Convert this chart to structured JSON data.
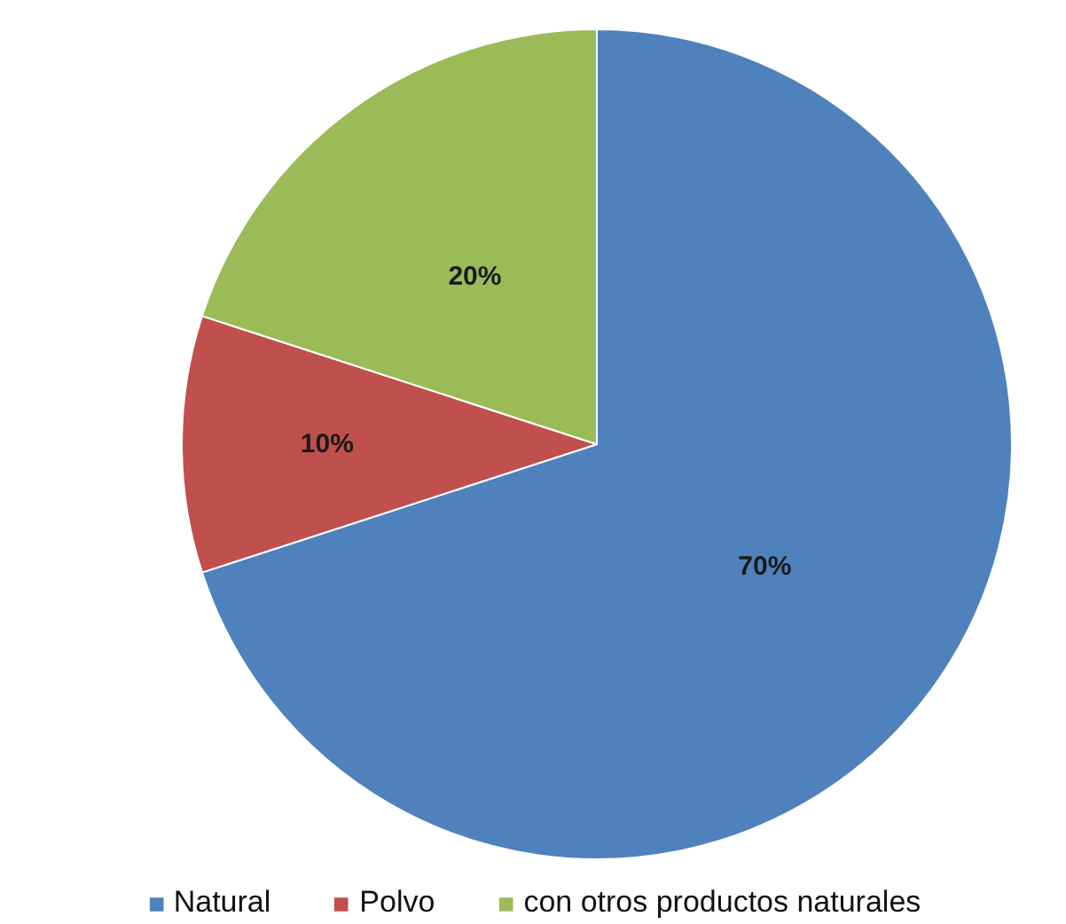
{
  "chart_data": {
    "type": "pie",
    "categories": [
      "Natural",
      "Polvo",
      "con otros productos naturales"
    ],
    "values": [
      70,
      10,
      20
    ],
    "colors": [
      "#4f81bd",
      "#c0504d",
      "#9bbb59"
    ],
    "value_labels": [
      "70%",
      "10%",
      "20%"
    ],
    "legend": "bottom"
  }
}
